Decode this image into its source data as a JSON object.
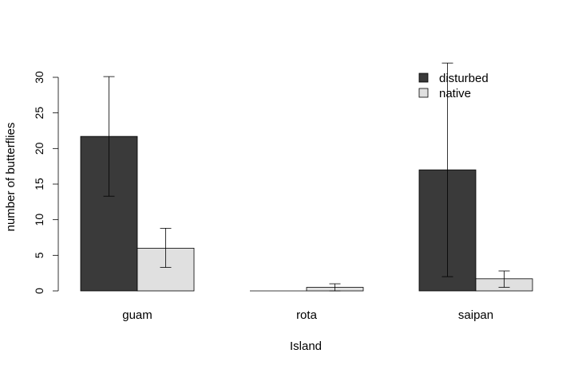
{
  "chart_data": {
    "type": "bar",
    "xlabel": "Island",
    "ylabel": "number of butterflies",
    "categories": [
      "guam",
      "rota",
      "saipan"
    ],
    "series": [
      {
        "name": "disturbed",
        "color": "#3a3a3a",
        "values": [
          21.7,
          0,
          17.0
        ],
        "error_low": [
          13.3,
          0,
          2.0
        ],
        "error_high": [
          30.1,
          0,
          32.0
        ]
      },
      {
        "name": "native",
        "color": "#e0e0e0",
        "values": [
          6.0,
          0.5,
          1.7
        ],
        "error_low": [
          3.3,
          0.0,
          0.5
        ],
        "error_high": [
          8.8,
          1.0,
          2.8
        ]
      }
    ],
    "yticks": [
      "0",
      "5",
      "10",
      "15",
      "20",
      "25",
      "30"
    ],
    "ylim": [
      0,
      30
    ],
    "grid": false,
    "legend_position": "top-right"
  }
}
